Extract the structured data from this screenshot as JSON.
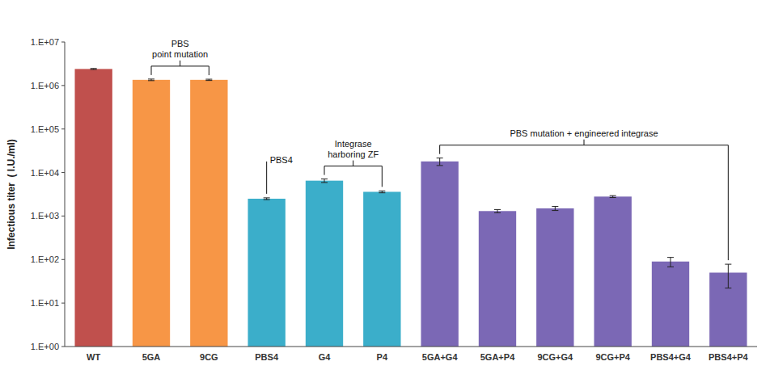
{
  "chart_data": {
    "type": "bar",
    "categories": [
      "WT",
      "5GA",
      "9CG",
      "PBS4",
      "G4",
      "P4",
      "5GA+G4",
      "5GA+P4",
      "9CG+G4",
      "9CG+P4",
      "PBS4+G4",
      "PBS4+P4"
    ],
    "values": [
      2400000,
      1350000,
      1350000,
      2500,
      6500,
      3600,
      18000,
      1300,
      1500,
      2800,
      90,
      50
    ],
    "errors": [
      60000,
      55000,
      45000,
      120,
      600,
      180,
      3500,
      110,
      160,
      140,
      22,
      28
    ],
    "colors": [
      "#C0504D",
      "#F79646",
      "#F79646",
      "#3BAECA",
      "#3BAECA",
      "#3BAECA",
      "#7B68B5",
      "#7B68B5",
      "#7B68B5",
      "#7B68B5",
      "#7B68B5",
      "#7B68B5"
    ],
    "ylabel": "Infectious titer  ( I.U./ml)",
    "log": "y",
    "ylim": [
      1,
      10000000
    ],
    "yticks": [
      {
        "value": 1,
        "label": "1.E+00"
      },
      {
        "value": 10,
        "label": "1.E+01"
      },
      {
        "value": 100,
        "label": "1.E+02"
      },
      {
        "value": 1000,
        "label": "1.E+03"
      },
      {
        "value": 10000,
        "label": "1.E+04"
      },
      {
        "value": 100000,
        "label": "1.E+05"
      },
      {
        "value": 1000000,
        "label": "1.E+06"
      },
      {
        "value": 10000000,
        "label": "1.E+07"
      }
    ],
    "grid": false,
    "annotations": [
      {
        "text": "PBS\npoint mutation",
        "from": "5GA",
        "to": "9CG"
      },
      {
        "text": "PBS4",
        "from": "PBS4",
        "to": "PBS4"
      },
      {
        "text": "Integrase\nharboring ZF",
        "from": "G4",
        "to": "P4"
      },
      {
        "text": "PBS mutation + engineered integrase",
        "from": "5GA+G4",
        "to": "PBS4+P4"
      }
    ]
  }
}
